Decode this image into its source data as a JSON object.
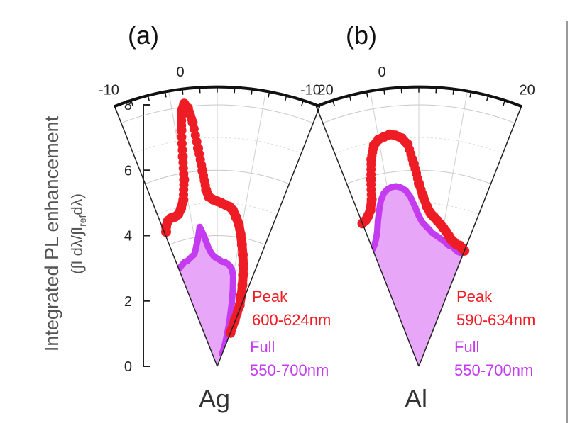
{
  "colors": {
    "peak": "#ee1c25",
    "full": "#c43cf0",
    "full_fill": "#e8a6f8"
  },
  "y_axis": {
    "label": "Integrated PL enhancement",
    "sublabel": "(∫I dλ/∫I",
    "sublabel_sub": "ref",
    "sublabel_end": "dλ)",
    "ticks": [
      "0",
      "2",
      "4",
      "6",
      "8"
    ]
  },
  "chart_data": [
    {
      "type": "polar",
      "panel": "(a)",
      "metal": "Ag",
      "angle_ticks": [
        "-10",
        "0",
        "20"
      ],
      "angle_range_deg": [
        -10,
        20
      ],
      "r_range": [
        0,
        8
      ],
      "series": [
        {
          "name": "Peak",
          "range_label": "600-624nm",
          "marker": "circle",
          "angles_deg": [
            -9.5,
            -9,
            -8,
            -7,
            -6,
            -5,
            -4,
            -3,
            -2,
            -1.5,
            -1,
            -0.5,
            0,
            0.5,
            1,
            1.5,
            2,
            2.5,
            3,
            4,
            5,
            6,
            7,
            8,
            9,
            10,
            11,
            12,
            13,
            14,
            15,
            16,
            17,
            18,
            19,
            19.5,
            20
          ],
          "r": [
            4.4,
            4.55,
            4.7,
            4.75,
            4.75,
            4.8,
            4.95,
            5.2,
            5.8,
            6.5,
            7.3,
            7.9,
            8.1,
            7.95,
            7.5,
            6.7,
            6.0,
            5.4,
            5.2,
            5.1,
            5.05,
            5.0,
            4.95,
            4.9,
            4.8,
            4.6,
            4.4,
            4.1,
            3.8,
            3.5,
            3.2,
            2.9,
            2.6,
            2.3,
            2.0,
            1.5,
            1.1
          ]
        },
        {
          "name": "Full",
          "range_label": "550-700nm",
          "marker": "filled-area",
          "angles_deg": [
            -10,
            -9,
            -8,
            -7,
            -6,
            -5,
            -4,
            -3,
            -2,
            -1,
            0,
            1,
            2,
            3,
            4,
            5,
            6,
            7,
            8,
            9,
            10,
            11,
            12,
            13,
            14,
            15,
            16,
            17,
            18,
            19,
            20
          ],
          "r": [
            3.2,
            3.25,
            3.3,
            3.35,
            3.35,
            3.4,
            3.45,
            3.5,
            3.7,
            3.95,
            4.3,
            4.0,
            3.65,
            3.45,
            3.35,
            3.3,
            3.25,
            3.2,
            3.2,
            3.15,
            3.1,
            3.0,
            2.8,
            2.4,
            2.0,
            1.6,
            1.3,
            1.0,
            0.8,
            0.6,
            0.4
          ]
        }
      ]
    },
    {
      "type": "polar",
      "panel": "(b)",
      "metal": "Al",
      "angle_ticks": [
        "-10",
        "0",
        "20"
      ],
      "angle_range_deg": [
        -10,
        20
      ],
      "r_range": [
        0,
        8
      ],
      "series": [
        {
          "name": "Peak",
          "range_label": "590-634nm",
          "marker": "circle",
          "angles_deg": [
            -10,
            -9,
            -8,
            -7,
            -6,
            -5,
            -4,
            -3,
            -2,
            -1,
            0,
            1,
            2,
            3,
            4,
            5,
            6,
            7,
            8,
            9,
            10,
            11,
            12,
            13,
            14,
            15,
            16,
            17,
            18,
            19,
            20
          ],
          "r": [
            4.7,
            4.75,
            4.85,
            5.0,
            5.3,
            5.9,
            6.5,
            6.9,
            7.05,
            7.1,
            7.15,
            7.1,
            7.0,
            6.8,
            6.2,
            5.6,
            5.2,
            4.9,
            4.7,
            4.6,
            4.5,
            4.4,
            4.3,
            4.2,
            4.1,
            4.0,
            3.95,
            3.9,
            3.9,
            3.85,
            3.8
          ]
        },
        {
          "name": "Full",
          "range_label": "550-700nm",
          "marker": "filled-area",
          "angles_deg": [
            -10,
            -9,
            -8,
            -7,
            -6,
            -5,
            -4,
            -3,
            -2,
            -1,
            0,
            1,
            2,
            3,
            4,
            5,
            6,
            7,
            8,
            9,
            10,
            11,
            12,
            13,
            14,
            15,
            16,
            17,
            18,
            19,
            20
          ],
          "r": [
            3.85,
            3.95,
            4.1,
            4.3,
            4.6,
            4.9,
            5.2,
            5.4,
            5.5,
            5.55,
            5.55,
            5.5,
            5.4,
            5.2,
            4.9,
            4.6,
            4.4,
            4.3,
            4.2,
            4.1,
            4.05,
            4.0,
            3.95,
            3.9,
            3.85,
            3.8,
            3.8,
            3.75,
            3.7,
            3.7,
            3.7
          ]
        }
      ]
    }
  ]
}
